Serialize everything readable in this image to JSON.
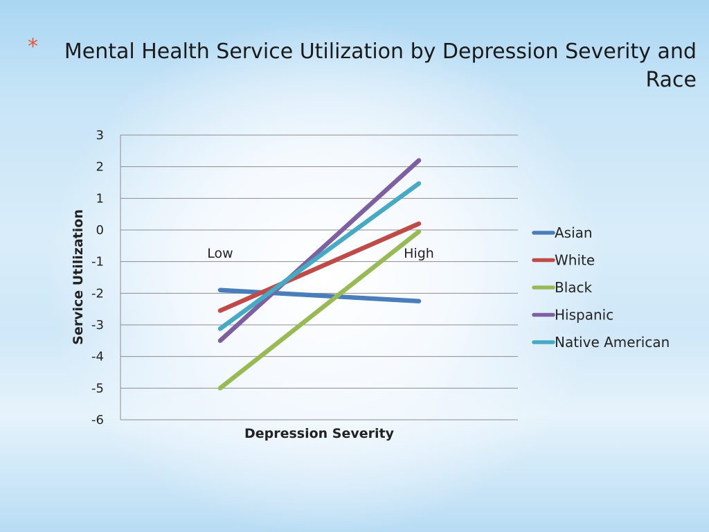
{
  "slide": {
    "bullet": "*",
    "title": "Mental Health Service Utilization by Depression Severity and Race"
  },
  "chart_data": {
    "type": "line",
    "title": "Mental Health Service Utilization by Depression Severity and Race",
    "xlabel": "Depression Severity",
    "ylabel": "Service Utilization",
    "categories": [
      "Low",
      "High"
    ],
    "ylim": [
      -6,
      3
    ],
    "yticks": [
      3,
      2,
      1,
      0,
      -1,
      -2,
      -3,
      -4,
      -5,
      -6
    ],
    "grid": true,
    "legend": "right",
    "series": [
      {
        "name": "Asian",
        "values": [
          -1.9,
          -2.25
        ],
        "color": "#4a7ebb"
      },
      {
        "name": "White",
        "values": [
          -2.55,
          0.2
        ],
        "color": "#be4b48"
      },
      {
        "name": "Black",
        "values": [
          -5.0,
          -0.05
        ],
        "color": "#98b954"
      },
      {
        "name": "Hispanic",
        "values": [
          -3.5,
          2.2
        ],
        "color": "#7d60a0"
      },
      {
        "name": "Native American",
        "values": [
          -3.12,
          1.47
        ],
        "color": "#46aac5"
      }
    ]
  }
}
